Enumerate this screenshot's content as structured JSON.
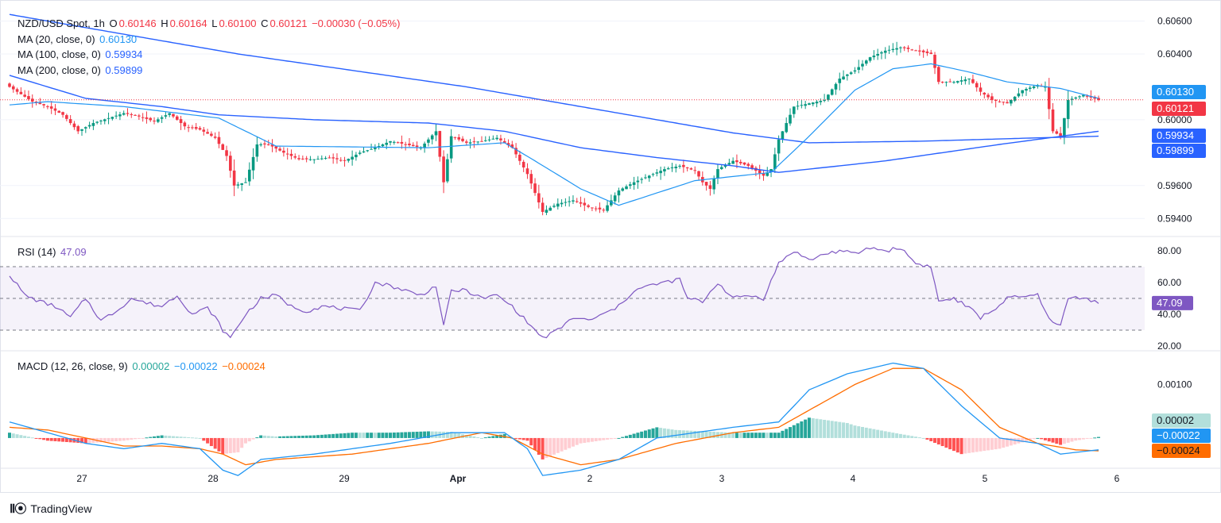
{
  "legend": {
    "symbol": "NZD/USD Spot, 1h",
    "ohlc": [
      {
        "k": "O",
        "v": "0.60146"
      },
      {
        "k": "H",
        "v": "0.60164"
      },
      {
        "k": "L",
        "v": "0.60100"
      },
      {
        "k": "C",
        "v": "0.60121"
      }
    ],
    "change": "−0.00030 (−0.05%)",
    "ma": [
      {
        "label": "MA (20, close, 0)",
        "value": "0.60130",
        "color": "#2196f3"
      },
      {
        "label": "MA (100, close, 0)",
        "value": "0.59934",
        "color": "#2962ff"
      },
      {
        "label": "MA (200, close, 0)",
        "value": "0.59899",
        "color": "#2962ff"
      }
    ],
    "rsi": {
      "label": "RSI (14)",
      "value": "47.09",
      "color": "#7e57c2"
    },
    "macd": {
      "label": "MACD (12, 26, close, 9)",
      "hist": "0.00002",
      "macd": "−0.00022",
      "signal": "−0.00024",
      "hist_color": "#26a69a",
      "macd_color": "#2196f3",
      "signal_color": "#ff6d00"
    }
  },
  "branding": {
    "name": "TradingView"
  },
  "colors": {
    "up": "#089981",
    "down": "#f23645",
    "ma20": "#2196f3",
    "ma100": "#2962ff",
    "ma200": "#2962ff",
    "rsi": "#7e57c2",
    "macd": "#2196f3",
    "signal": "#ff6d00",
    "hist_pos_strong": "#26a69a",
    "hist_pos_weak": "#b2dfdb",
    "hist_neg_strong": "#ff5252",
    "hist_neg_weak": "#ffcdd2"
  },
  "chart_data": [
    {
      "type": "candlestick",
      "title": "NZD/USD Spot, 1h",
      "ylim": [
        0.593,
        0.6067
      ],
      "yticks": [
        "0.59400",
        "0.59600",
        "0.60000",
        "0.60400",
        "0.60600"
      ],
      "ytick_values": [
        0.594,
        0.596,
        0.6,
        0.604,
        0.606
      ],
      "last_value_tags": [
        {
          "text": "0.60130",
          "value": 0.6013,
          "color": "#2196f3"
        },
        {
          "text": "0.60121",
          "value": 0.60121,
          "color": "#f23645"
        },
        {
          "text": "0.59934",
          "value": 0.59934,
          "color": "#2962ff"
        },
        {
          "text": "0.59899",
          "value": 0.59899,
          "color": "#2962ff"
        }
      ],
      "close_anchors": [
        [
          0,
          0.602
        ],
        [
          6,
          0.6011
        ],
        [
          10,
          0.6008
        ],
        [
          14,
          0.6003
        ],
        [
          18,
          0.5993
        ],
        [
          22,
          0.5998
        ],
        [
          26,
          0.6001
        ],
        [
          30,
          0.6004
        ],
        [
          34,
          0.6002
        ],
        [
          38,
          0.5999
        ],
        [
          42,
          0.6004
        ],
        [
          46,
          0.5996
        ],
        [
          50,
          0.5994
        ],
        [
          54,
          0.5989
        ],
        [
          57,
          0.5978
        ],
        [
          59,
          0.596
        ],
        [
          62,
          0.5962
        ],
        [
          65,
          0.5985
        ],
        [
          68,
          0.5985
        ],
        [
          72,
          0.598
        ],
        [
          76,
          0.5976
        ],
        [
          80,
          0.5976
        ],
        [
          84,
          0.5977
        ],
        [
          88,
          0.5975
        ],
        [
          92,
          0.598
        ],
        [
          96,
          0.5983
        ],
        [
          100,
          0.5987
        ],
        [
          104,
          0.5985
        ],
        [
          108,
          0.5983
        ],
        [
          112,
          0.5993
        ],
        [
          114,
          0.5962
        ],
        [
          116,
          0.599
        ],
        [
          120,
          0.5986
        ],
        [
          124,
          0.5987
        ],
        [
          128,
          0.5989
        ],
        [
          132,
          0.5983
        ],
        [
          136,
          0.5967
        ],
        [
          140,
          0.5944
        ],
        [
          144,
          0.5949
        ],
        [
          148,
          0.5951
        ],
        [
          152,
          0.5947
        ],
        [
          156,
          0.5945
        ],
        [
          160,
          0.5957
        ],
        [
          164,
          0.5962
        ],
        [
          168,
          0.5966
        ],
        [
          172,
          0.597
        ],
        [
          176,
          0.5972
        ],
        [
          180,
          0.5969
        ],
        [
          182,
          0.5962
        ],
        [
          184,
          0.5958
        ],
        [
          186,
          0.597
        ],
        [
          190,
          0.5975
        ],
        [
          194,
          0.5972
        ],
        [
          198,
          0.5966
        ],
        [
          200,
          0.597
        ],
        [
          202,
          0.5988
        ],
        [
          206,
          0.6008
        ],
        [
          210,
          0.601
        ],
        [
          214,
          0.6012
        ],
        [
          218,
          0.6025
        ],
        [
          222,
          0.603
        ],
        [
          226,
          0.6038
        ],
        [
          230,
          0.6042
        ],
        [
          234,
          0.6044
        ],
        [
          238,
          0.6042
        ],
        [
          242,
          0.604
        ],
        [
          244,
          0.6023
        ],
        [
          248,
          0.6023
        ],
        [
          252,
          0.6025
        ],
        [
          255,
          0.6017
        ],
        [
          258,
          0.6012
        ],
        [
          262,
          0.601
        ],
        [
          266,
          0.6018
        ],
        [
          270,
          0.6021
        ],
        [
          272,
          0.602
        ],
        [
          274,
          0.5993
        ],
        [
          276,
          0.599
        ],
        [
          278,
          0.6012
        ],
        [
          282,
          0.6015
        ],
        [
          286,
          0.6012
        ]
      ],
      "ma20_anchors": [
        [
          0,
          0.6009
        ],
        [
          10,
          0.6011
        ],
        [
          30,
          0.6008
        ],
        [
          55,
          0.6001
        ],
        [
          70,
          0.5984
        ],
        [
          110,
          0.5983
        ],
        [
          130,
          0.5986
        ],
        [
          138,
          0.5975
        ],
        [
          150,
          0.5958
        ],
        [
          160,
          0.5948
        ],
        [
          180,
          0.5963
        ],
        [
          200,
          0.5968
        ],
        [
          210,
          0.599
        ],
        [
          222,
          0.6018
        ],
        [
          232,
          0.6031
        ],
        [
          242,
          0.6034
        ],
        [
          252,
          0.6029
        ],
        [
          262,
          0.6023
        ],
        [
          276,
          0.6019
        ],
        [
          286,
          0.6013
        ]
      ],
      "ma100_anchors": [
        [
          0,
          0.6027
        ],
        [
          20,
          0.6013
        ],
        [
          40,
          0.6008
        ],
        [
          55,
          0.6003
        ],
        [
          80,
          0.6
        ],
        [
          110,
          0.5998
        ],
        [
          130,
          0.5993
        ],
        [
          150,
          0.5983
        ],
        [
          170,
          0.5977
        ],
        [
          190,
          0.5972
        ],
        [
          202,
          0.5968
        ],
        [
          230,
          0.5975
        ],
        [
          260,
          0.5985
        ],
        [
          286,
          0.5993
        ]
      ],
      "ma200_anchors": [
        [
          0,
          0.6064
        ],
        [
          60,
          0.604
        ],
        [
          120,
          0.602
        ],
        [
          160,
          0.6004
        ],
        [
          190,
          0.5992
        ],
        [
          210,
          0.5986
        ],
        [
          240,
          0.5987
        ],
        [
          270,
          0.5989
        ],
        [
          286,
          0.599
        ]
      ]
    },
    {
      "type": "line",
      "title": "RSI (14)",
      "ylim": [
        18,
        88
      ],
      "yticks": [
        "20.00",
        "40.00",
        "60.00",
        "80.00"
      ],
      "ytick_values": [
        20,
        40,
        60,
        80
      ],
      "bands": [
        30,
        50,
        70
      ],
      "last_value": 47.09,
      "rsi_anchors": [
        [
          0,
          65
        ],
        [
          4,
          52
        ],
        [
          8,
          48
        ],
        [
          12,
          45
        ],
        [
          16,
          38
        ],
        [
          20,
          50
        ],
        [
          24,
          36
        ],
        [
          28,
          42
        ],
        [
          32,
          50
        ],
        [
          36,
          47
        ],
        [
          40,
          45
        ],
        [
          44,
          52
        ],
        [
          48,
          40
        ],
        [
          52,
          44
        ],
        [
          54,
          38
        ],
        [
          56,
          30
        ],
        [
          58,
          25
        ],
        [
          62,
          40
        ],
        [
          66,
          50
        ],
        [
          70,
          52
        ],
        [
          74,
          45
        ],
        [
          78,
          42
        ],
        [
          82,
          45
        ],
        [
          86,
          44
        ],
        [
          92,
          42
        ],
        [
          96,
          60
        ],
        [
          100,
          58
        ],
        [
          104,
          55
        ],
        [
          108,
          52
        ],
        [
          112,
          58
        ],
        [
          114,
          32
        ],
        [
          116,
          55
        ],
        [
          120,
          55
        ],
        [
          124,
          50
        ],
        [
          128,
          52
        ],
        [
          132,
          45
        ],
        [
          136,
          35
        ],
        [
          140,
          25
        ],
        [
          144,
          30
        ],
        [
          148,
          38
        ],
        [
          152,
          36
        ],
        [
          156,
          40
        ],
        [
          160,
          45
        ],
        [
          164,
          55
        ],
        [
          168,
          58
        ],
        [
          172,
          60
        ],
        [
          176,
          62
        ],
        [
          178,
          50
        ],
        [
          182,
          48
        ],
        [
          186,
          60
        ],
        [
          190,
          50
        ],
        [
          194,
          52
        ],
        [
          198,
          50
        ],
        [
          202,
          72
        ],
        [
          206,
          80
        ],
        [
          210,
          74
        ],
        [
          214,
          78
        ],
        [
          218,
          80
        ],
        [
          222,
          78
        ],
        [
          226,
          82
        ],
        [
          230,
          80
        ],
        [
          234,
          82
        ],
        [
          238,
          72
        ],
        [
          242,
          70
        ],
        [
          244,
          48
        ],
        [
          248,
          50
        ],
        [
          252,
          44
        ],
        [
          255,
          38
        ],
        [
          258,
          42
        ],
        [
          262,
          50
        ],
        [
          266,
          51
        ],
        [
          270,
          52
        ],
        [
          274,
          34
        ],
        [
          276,
          33
        ],
        [
          278,
          50
        ],
        [
          282,
          51
        ],
        [
          286,
          47
        ]
      ]
    },
    {
      "type": "bar+line",
      "title": "MACD (12, 26, close, 9)",
      "ylim": [
        -0.00095,
        0.0016
      ],
      "yticks": [
        "0.00100"
      ],
      "ytick_values": [
        0.001
      ],
      "last_values": {
        "hist": 2e-05,
        "macd": -0.00022,
        "signal": -0.00024
      },
      "macd_anchors": [
        [
          0,
          0.0003
        ],
        [
          10,
          0.0001
        ],
        [
          20,
          -0.0001
        ],
        [
          30,
          -0.0002
        ],
        [
          40,
          -0.0001
        ],
        [
          50,
          -0.0002
        ],
        [
          56,
          -0.0006
        ],
        [
          60,
          -0.0007
        ],
        [
          66,
          -0.0004
        ],
        [
          80,
          -0.0003
        ],
        [
          100,
          -0.0001
        ],
        [
          116,
          0.0001
        ],
        [
          130,
          0.0001
        ],
        [
          136,
          -0.0002
        ],
        [
          140,
          -0.0007
        ],
        [
          150,
          -0.0006
        ],
        [
          160,
          -0.0004
        ],
        [
          170,
          0.0
        ],
        [
          180,
          0.0001
        ],
        [
          190,
          0.0002
        ],
        [
          202,
          0.0003
        ],
        [
          210,
          0.0009
        ],
        [
          220,
          0.0012
        ],
        [
          232,
          0.0014
        ],
        [
          240,
          0.0013
        ],
        [
          250,
          0.0006
        ],
        [
          260,
          0.0
        ],
        [
          270,
          -0.0001
        ],
        [
          276,
          -0.0003
        ],
        [
          286,
          -0.00022
        ]
      ],
      "signal_anchors": [
        [
          0,
          0.0002
        ],
        [
          10,
          0.00015
        ],
        [
          20,
          0.0
        ],
        [
          30,
          -0.00015
        ],
        [
          40,
          -0.00015
        ],
        [
          50,
          -0.0002
        ],
        [
          56,
          -0.0003
        ],
        [
          62,
          -0.0005
        ],
        [
          70,
          -0.0004
        ],
        [
          90,
          -0.0003
        ],
        [
          110,
          -0.0001
        ],
        [
          124,
          0.0001
        ],
        [
          132,
          0.0
        ],
        [
          140,
          -0.0003
        ],
        [
          150,
          -0.0005
        ],
        [
          160,
          -0.0004
        ],
        [
          175,
          -0.0001
        ],
        [
          190,
          0.0001
        ],
        [
          202,
          0.0002
        ],
        [
          212,
          0.0006
        ],
        [
          222,
          0.001
        ],
        [
          232,
          0.0013
        ],
        [
          240,
          0.0013
        ],
        [
          250,
          0.0009
        ],
        [
          260,
          0.0002
        ],
        [
          270,
          -0.0001
        ],
        [
          280,
          -0.00022
        ],
        [
          286,
          -0.00024
        ]
      ]
    }
  ],
  "x_axis": {
    "labels": [
      "27",
      "28",
      "29",
      "Apr",
      "2",
      "3",
      "4",
      "5",
      "6"
    ],
    "label_bars": [
      16,
      41,
      65,
      89,
      113,
      137,
      161,
      185,
      209
    ]
  }
}
